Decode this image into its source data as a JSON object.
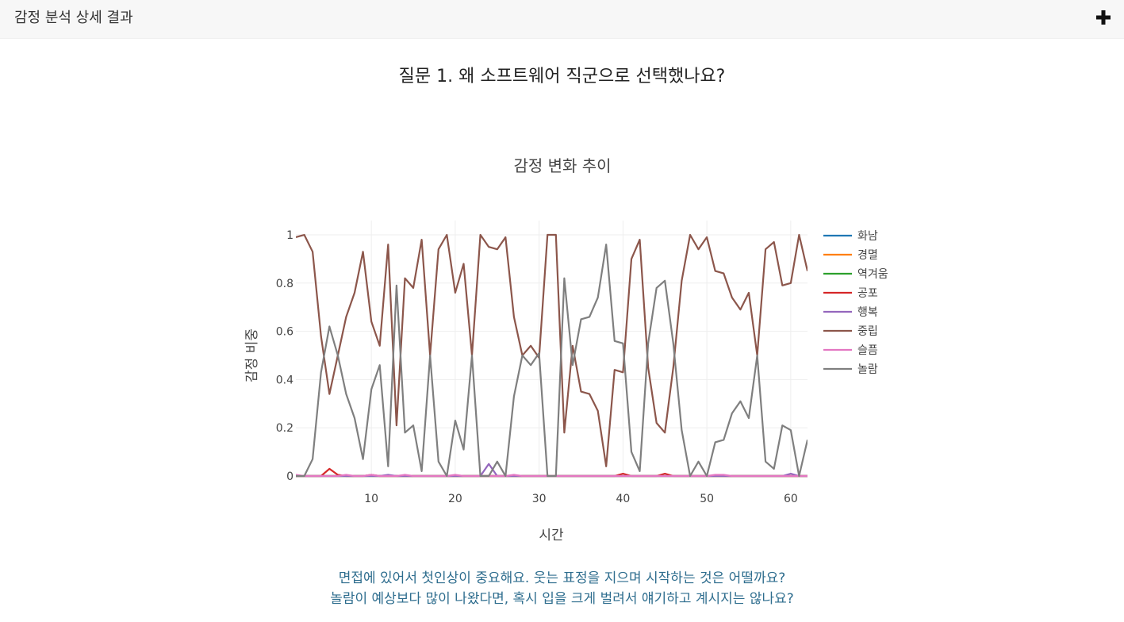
{
  "header": {
    "title": "감정 분석 상세 결과",
    "toggle_icon": "plus-icon"
  },
  "question": {
    "text": "질문 1. 왜 소프트웨어 직군으로 선택했나요?"
  },
  "chart_data": {
    "type": "line",
    "title": "감정 변화 추이",
    "xlabel": "시간",
    "ylabel": "감정 비중",
    "xlim": [
      1,
      62
    ],
    "ylim": [
      0,
      1
    ],
    "xticks": [
      10,
      20,
      30,
      40,
      50,
      60
    ],
    "yticks": [
      0,
      0.2,
      0.4,
      0.6,
      0.8,
      1
    ],
    "ytick_labels": [
      "0",
      "0.2",
      "0.4",
      "0.6",
      "0.8",
      "1"
    ],
    "legend_position": "right",
    "series": [
      {
        "name": "화남",
        "color": "#1f77b4",
        "values": [
          0,
          0,
          0,
          0,
          0,
          0,
          0,
          0,
          0,
          0,
          0,
          0,
          0,
          0,
          0,
          0,
          0,
          0,
          0,
          0,
          0,
          0,
          0,
          0,
          0,
          0,
          0,
          0,
          0,
          0,
          0,
          0,
          0,
          0,
          0,
          0,
          0,
          0,
          0,
          0,
          0,
          0,
          0,
          0,
          0,
          0,
          0,
          0,
          0,
          0,
          0,
          0,
          0,
          0,
          0,
          0,
          0,
          0,
          0,
          0,
          0,
          0
        ]
      },
      {
        "name": "경멸",
        "color": "#ff7f0e",
        "values": [
          0,
          0,
          0,
          0,
          0,
          0,
          0,
          0,
          0,
          0,
          0,
          0,
          0,
          0,
          0,
          0,
          0,
          0,
          0,
          0,
          0,
          0,
          0,
          0,
          0,
          0,
          0,
          0,
          0,
          0,
          0,
          0,
          0,
          0,
          0,
          0,
          0,
          0,
          0,
          0,
          0,
          0,
          0,
          0,
          0,
          0,
          0,
          0,
          0,
          0,
          0,
          0,
          0,
          0,
          0,
          0,
          0,
          0,
          0,
          0,
          0,
          0
        ]
      },
      {
        "name": "역겨움",
        "color": "#2ca02c",
        "values": [
          0,
          0,
          0,
          0,
          0,
          0,
          0,
          0,
          0,
          0,
          0,
          0,
          0,
          0,
          0,
          0,
          0,
          0,
          0,
          0,
          0,
          0,
          0,
          0,
          0,
          0,
          0,
          0,
          0,
          0,
          0,
          0,
          0,
          0,
          0,
          0,
          0,
          0,
          0,
          0,
          0,
          0,
          0,
          0,
          0,
          0,
          0,
          0,
          0,
          0,
          0,
          0,
          0,
          0,
          0,
          0,
          0,
          0,
          0,
          0,
          0,
          0
        ]
      },
      {
        "name": "공포",
        "color": "#d62728",
        "values": [
          0,
          0,
          0,
          0,
          0.03,
          0.005,
          0,
          0,
          0,
          0.005,
          0,
          0,
          0,
          0,
          0,
          0,
          0,
          0,
          0,
          0,
          0,
          0,
          0,
          0,
          0,
          0,
          0,
          0,
          0,
          0,
          0,
          0,
          0,
          0,
          0,
          0,
          0,
          0,
          0,
          0.01,
          0,
          0,
          0,
          0,
          0.01,
          0,
          0,
          0,
          0,
          0,
          0,
          0,
          0,
          0,
          0,
          0,
          0,
          0,
          0,
          0,
          0,
          0
        ]
      },
      {
        "name": "행복",
        "color": "#9467bd",
        "values": [
          0,
          0,
          0,
          0,
          0,
          0,
          0,
          0,
          0,
          0,
          0,
          0.005,
          0,
          0,
          0,
          0,
          0,
          0,
          0,
          0,
          0,
          0,
          0,
          0.05,
          0,
          0,
          0,
          0,
          0,
          0,
          0,
          0,
          0,
          0,
          0,
          0,
          0,
          0,
          0,
          0,
          0,
          0,
          0,
          0,
          0,
          0,
          0,
          0,
          0,
          0,
          0,
          0,
          0,
          0,
          0,
          0,
          0,
          0,
          0,
          0.01,
          0,
          0
        ]
      },
      {
        "name": "중립",
        "color": "#8c564b",
        "values": [
          0.99,
          1.0,
          0.93,
          0.58,
          0.34,
          0.5,
          0.66,
          0.76,
          0.93,
          0.64,
          0.54,
          0.96,
          0.21,
          0.82,
          0.78,
          0.98,
          0.5,
          0.94,
          1.0,
          0.76,
          0.88,
          0.5,
          1.0,
          0.95,
          0.94,
          0.99,
          0.66,
          0.5,
          0.54,
          0.49,
          1.0,
          1.0,
          0.18,
          0.54,
          0.35,
          0.34,
          0.27,
          0.04,
          0.44,
          0.43,
          0.9,
          0.98,
          0.45,
          0.22,
          0.18,
          0.45,
          0.81,
          1.0,
          0.94,
          0.99,
          0.85,
          0.84,
          0.74,
          0.69,
          0.76,
          0.5,
          0.94,
          0.97,
          0.79,
          0.8,
          1.0,
          0.85
        ]
      },
      {
        "name": "슬픔",
        "color": "#e377c2",
        "values": [
          0.005,
          0,
          0,
          0,
          0,
          0,
          0.005,
          0,
          0,
          0.005,
          0,
          0,
          0,
          0.005,
          0,
          0,
          0,
          0,
          0,
          0.005,
          0,
          0,
          0,
          0,
          0,
          0,
          0.005,
          0,
          0,
          0,
          0,
          0,
          0,
          0,
          0,
          0,
          0,
          0,
          0,
          0,
          0,
          0,
          0,
          0,
          0,
          0,
          0,
          0,
          0,
          0,
          0.005,
          0.005,
          0,
          0,
          0,
          0,
          0,
          0,
          0,
          0,
          0,
          0
        ]
      },
      {
        "name": "놀람",
        "color": "#7f7f7f",
        "values": [
          0,
          0,
          0.07,
          0.43,
          0.62,
          0.5,
          0.34,
          0.24,
          0.07,
          0.36,
          0.46,
          0.04,
          0.79,
          0.18,
          0.21,
          0.02,
          0.5,
          0.06,
          0,
          0.23,
          0.11,
          0.5,
          0,
          0,
          0.06,
          0,
          0.33,
          0.5,
          0.46,
          0.51,
          0,
          0,
          0.82,
          0.46,
          0.65,
          0.66,
          0.74,
          0.96,
          0.56,
          0.55,
          0.1,
          0.02,
          0.55,
          0.78,
          0.81,
          0.55,
          0.19,
          0,
          0.06,
          0,
          0.14,
          0.15,
          0.26,
          0.31,
          0.24,
          0.5,
          0.06,
          0.03,
          0.21,
          0.19,
          0,
          0.15
        ]
      }
    ]
  },
  "advice": {
    "line1": "면접에 있어서 첫인상이 중요해요. 웃는 표정을 지으며 시작하는 것은 어떨까요?",
    "line2": "놀람이 예상보다 많이 나왔다면, 혹시 입을 크게 벌려서 얘기하고 계시지는 않나요?"
  }
}
